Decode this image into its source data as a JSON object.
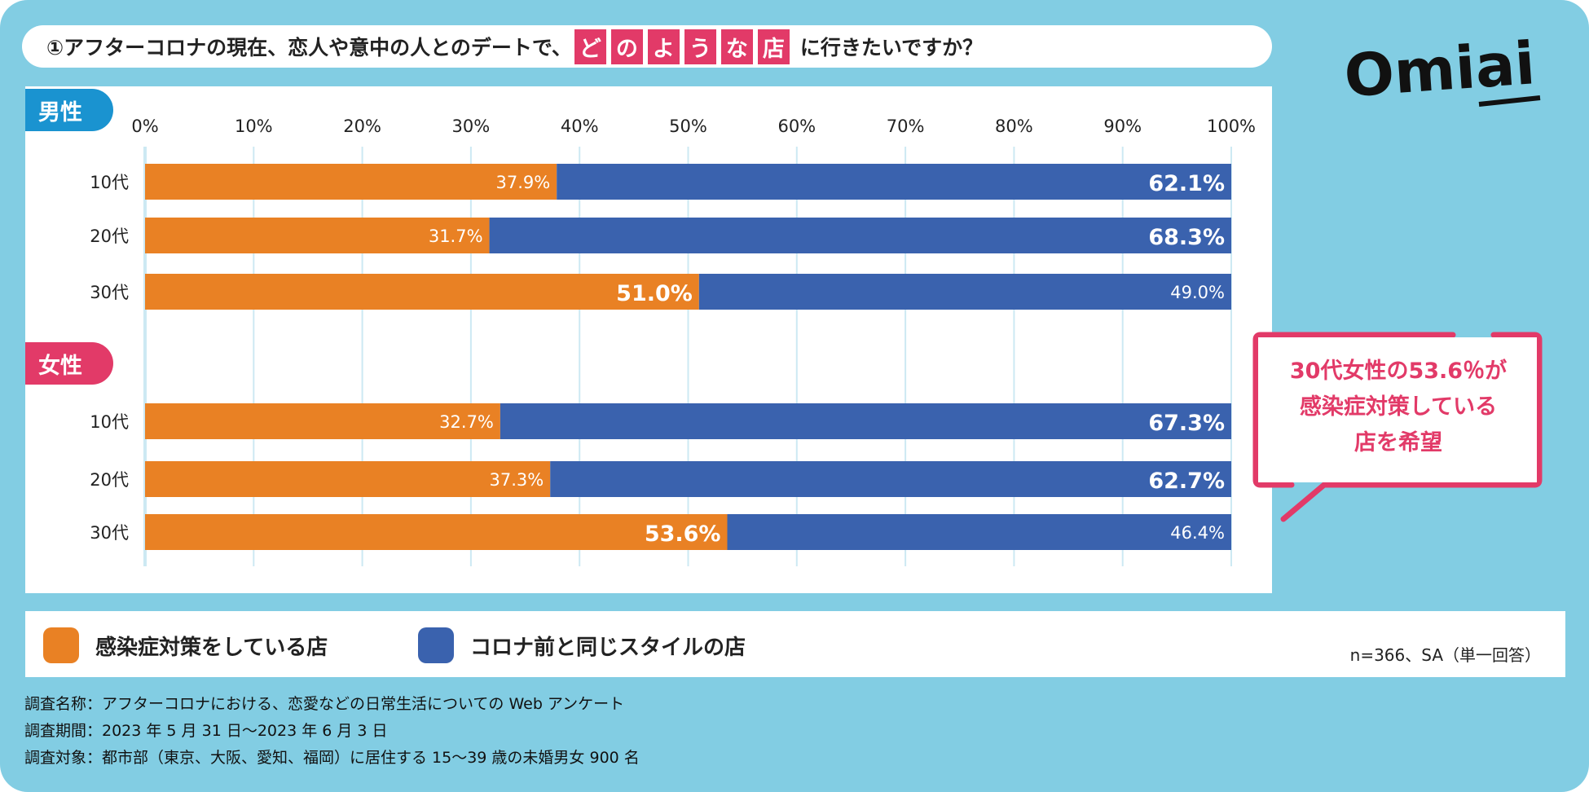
{
  "title": {
    "prefix": "①アフターコロナの現在、恋人や意中の人とのデートで、",
    "highlight": [
      "ど",
      "の",
      "よ",
      "う",
      "な",
      "店"
    ],
    "suffix": "に行きたいですか？"
  },
  "logo": "Omiai",
  "colors": {
    "background": "#82cde3",
    "orange": "#e98124",
    "blue": "#3a62ae",
    "accent_pink": "#e23a68",
    "male_badge": "#1a93d0"
  },
  "chart_data": {
    "type": "bar",
    "stacked": true,
    "orientation": "horizontal",
    "xlim": [
      0,
      100
    ],
    "x_ticks": [
      "0%",
      "10%",
      "20%",
      "30%",
      "40%",
      "50%",
      "60%",
      "70%",
      "80%",
      "90%",
      "100%"
    ],
    "grid": true,
    "groups": [
      {
        "label": "男性",
        "categories": [
          "10代",
          "20代",
          "30代"
        ],
        "series": [
          {
            "name": "感染症対策をしている店",
            "values": [
              37.9,
              31.7,
              51.0
            ],
            "labels": [
              "37.9%",
              "31.7%",
              "51.0%"
            ]
          },
          {
            "name": "コロナ前と同じスタイルの店",
            "values": [
              62.1,
              68.3,
              49.0
            ],
            "labels": [
              "62.1%",
              "68.3%",
              "49.0%"
            ]
          }
        ]
      },
      {
        "label": "女性",
        "categories": [
          "10代",
          "20代",
          "30代"
        ],
        "series": [
          {
            "name": "感染症対策をしている店",
            "values": [
              32.7,
              37.3,
              53.6
            ],
            "labels": [
              "32.7%",
              "37.3%",
              "53.6%"
            ]
          },
          {
            "name": "コロナ前と同じスタイルの店",
            "values": [
              67.3,
              62.7,
              46.4
            ],
            "labels": [
              "67.3%",
              "62.7%",
              "46.4%"
            ]
          }
        ]
      }
    ],
    "legend": [
      "感染症対策をしている店",
      "コロナ前と同じスタイルの店"
    ],
    "legend_position": "bottom"
  },
  "callout": [
    "30代女性の53.6％が",
    "感染症対策している",
    "店を希望"
  ],
  "note": "n=366、SA（単一回答）",
  "footer": [
    "調査名称：アフターコロナにおける、恋愛などの日常生活についての Web アンケート",
    "調査期間：2023 年 5 月 31 日～2023 年 6 月 3 日",
    "調査対象：都市部（東京、大阪、愛知、福岡）に居住する 15～39 歳の未婚男女 900 名"
  ]
}
